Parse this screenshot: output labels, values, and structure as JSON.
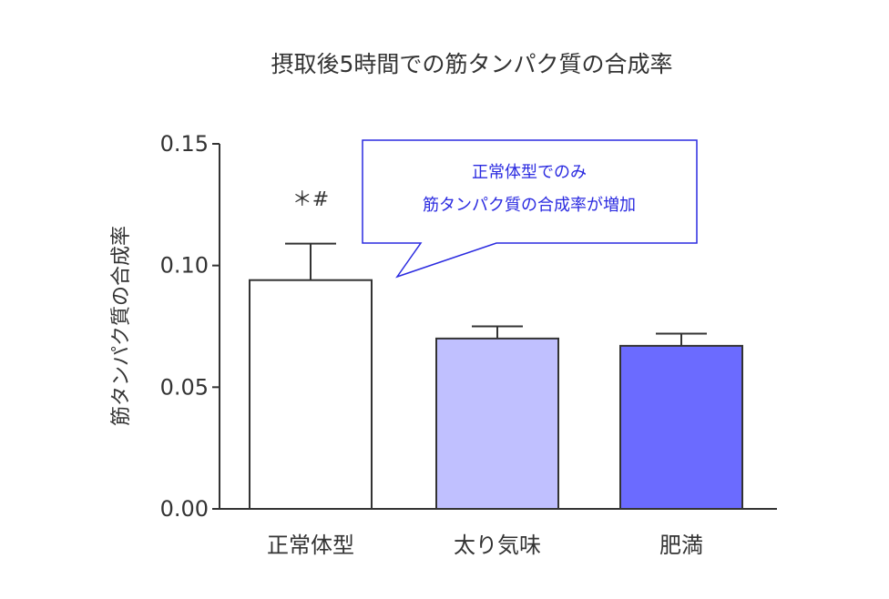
{
  "chart_data": {
    "type": "bar",
    "title": "摂取後5時間での筋タンパク質の合成率",
    "xlabel": "",
    "ylabel": "筋タンパク質の合成率",
    "ylim": [
      0,
      0.15
    ],
    "yticks": [
      "0.00",
      "0.05",
      "0.10",
      "0.15"
    ],
    "categories": [
      "正常体型",
      "太り気味",
      "肥満"
    ],
    "values": [
      0.094,
      0.07,
      0.067
    ],
    "errors": [
      0.015,
      0.005,
      0.005
    ],
    "colors": [
      "#ffffff",
      "#c0c0ff",
      "#6b6bff"
    ],
    "annotations": {
      "significance": "＊#",
      "callout_line1": "正常体型でのみ",
      "callout_line2": "筋タンパク質の合成率が増加"
    },
    "grid": false,
    "legend": "none"
  }
}
